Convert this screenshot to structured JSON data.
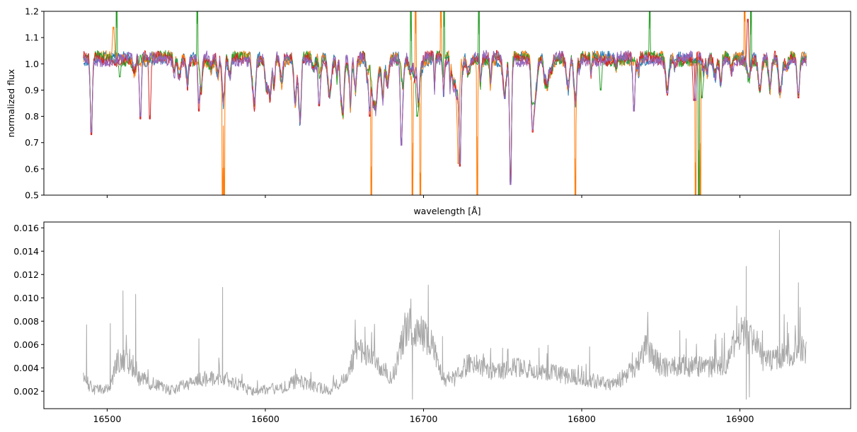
{
  "chart_data": [
    {
      "type": "line",
      "ylabel": "normalized flux",
      "xlabel": "wavelength [$\\AA$]",
      "xlabel_display": "wavelength [Å]",
      "xlim": [
        16460,
        16970
      ],
      "ylim": [
        0.5,
        1.2
      ],
      "x_ticks": [
        16500,
        16600,
        16700,
        16800,
        16900
      ],
      "x_tick_labels_shown": false,
      "y_ticks": [
        0.5,
        0.6,
        0.7,
        0.8,
        0.9,
        1.0,
        1.1,
        1.2
      ],
      "y_tick_labels": [
        "0.5",
        "0.6",
        "0.7",
        "0.8",
        "0.9",
        "1.0",
        "1.1",
        "1.2"
      ],
      "grid": false,
      "legend": "none",
      "x_range": [
        16485,
        16942
      ],
      "baseline": 1.02,
      "series": [
        {
          "color": "#1f77b4",
          "features": [
            [
              16490,
              0.74
            ],
            [
              16521,
              0.8
            ],
            [
              16558,
              0.86
            ],
            [
              16634,
              0.84
            ],
            [
              16666,
              0.83
            ],
            [
              16686,
              0.7
            ],
            [
              16723,
              0.62
            ],
            [
              16755,
              0.55
            ],
            [
              16769,
              0.75
            ],
            [
              16833,
              0.83
            ],
            [
              16937,
              0.89
            ]
          ]
        },
        {
          "color": "#ff7f0e",
          "features": [
            [
              16490,
              0.74
            ],
            [
              16504,
              1.14
            ],
            [
              16573,
              0.5
            ],
            [
              16574,
              0.5
            ],
            [
              16667,
              0.5
            ],
            [
              16693,
              0.5
            ],
            [
              16695,
              1.2
            ],
            [
              16698,
              0.5
            ],
            [
              16711,
              1.2
            ],
            [
              16722,
              0.62
            ],
            [
              16734,
              0.5
            ],
            [
              16755,
              0.55
            ],
            [
              16769,
              0.74
            ],
            [
              16796,
              0.5
            ],
            [
              16872,
              0.5
            ],
            [
              16875,
              0.5
            ],
            [
              16903,
              1.2
            ],
            [
              16937,
              0.88
            ]
          ]
        },
        {
          "color": "#2ca02c",
          "features": [
            [
              16490,
              0.74
            ],
            [
              16506,
              1.2
            ],
            [
              16508,
              0.95
            ],
            [
              16557,
              1.2
            ],
            [
              16692,
              1.2
            ],
            [
              16696,
              0.8
            ],
            [
              16713,
              1.2
            ],
            [
              16723,
              0.62
            ],
            [
              16735,
              1.2
            ],
            [
              16755,
              0.55
            ],
            [
              16812,
              0.9
            ],
            [
              16843,
              1.2
            ],
            [
              16874,
              0.5
            ],
            [
              16876,
              0.87
            ],
            [
              16907,
              1.2
            ],
            [
              16937,
              0.88
            ]
          ]
        },
        {
          "color": "#d62728",
          "features": [
            [
              16490,
              0.73
            ],
            [
              16521,
              0.79
            ],
            [
              16527,
              0.79
            ],
            [
              16558,
              0.82
            ],
            [
              16634,
              0.84
            ],
            [
              16666,
              0.8
            ],
            [
              16686,
              0.69
            ],
            [
              16723,
              0.61
            ],
            [
              16755,
              0.56
            ],
            [
              16769,
              0.74
            ],
            [
              16833,
              0.82
            ],
            [
              16871,
              0.86
            ],
            [
              16905,
              1.17
            ],
            [
              16937,
              0.87
            ]
          ]
        },
        {
          "color": "#9467bd",
          "features": [
            [
              16490,
              0.74
            ],
            [
              16521,
              0.8
            ],
            [
              16558,
              0.85
            ],
            [
              16634,
              0.85
            ],
            [
              16666,
              0.82
            ],
            [
              16686,
              0.69
            ],
            [
              16723,
              0.62
            ],
            [
              16755,
              0.54
            ],
            [
              16769,
              0.75
            ],
            [
              16833,
              0.82
            ],
            [
              16872,
              0.86
            ],
            [
              16937,
              0.89
            ]
          ]
        }
      ]
    },
    {
      "type": "line",
      "xlim": [
        16460,
        16970
      ],
      "ylim": [
        0.0005,
        0.0165
      ],
      "x_ticks": [
        16500,
        16600,
        16700,
        16800,
        16900
      ],
      "x_tick_labels": [
        "16500",
        "16600",
        "16700",
        "16800",
        "16900"
      ],
      "y_ticks": [
        0.002,
        0.004,
        0.006,
        0.008,
        0.01,
        0.012,
        0.014,
        0.016
      ],
      "y_tick_labels": [
        "0.002",
        "0.004",
        "0.006",
        "0.008",
        "0.010",
        "0.012",
        "0.014",
        "0.016"
      ],
      "grid": false,
      "legend": "none",
      "x_range": [
        16485,
        16942
      ],
      "series": [
        {
          "color": "#a9a9a9",
          "envelope": [
            [
              16485,
              0.003
            ],
            [
              16492,
              0.002
            ],
            [
              16502,
              0.0022
            ],
            [
              16506,
              0.0045
            ],
            [
              16512,
              0.0045
            ],
            [
              16520,
              0.003
            ],
            [
              16540,
              0.002
            ],
            [
              16560,
              0.003
            ],
            [
              16575,
              0.003
            ],
            [
              16590,
              0.002
            ],
            [
              16610,
              0.0022
            ],
            [
              16620,
              0.0028
            ],
            [
              16640,
              0.002
            ],
            [
              16650,
              0.003
            ],
            [
              16658,
              0.0055
            ],
            [
              16665,
              0.005
            ],
            [
              16680,
              0.003
            ],
            [
              16690,
              0.0075
            ],
            [
              16698,
              0.007
            ],
            [
              16705,
              0.006
            ],
            [
              16712,
              0.003
            ],
            [
              16720,
              0.003
            ],
            [
              16730,
              0.0045
            ],
            [
              16745,
              0.0035
            ],
            [
              16760,
              0.004
            ],
            [
              16780,
              0.0035
            ],
            [
              16800,
              0.003
            ],
            [
              16820,
              0.0025
            ],
            [
              16835,
              0.004
            ],
            [
              16840,
              0.0058
            ],
            [
              16850,
              0.004
            ],
            [
              16870,
              0.004
            ],
            [
              16890,
              0.004
            ],
            [
              16900,
              0.007
            ],
            [
              16910,
              0.006
            ],
            [
              16915,
              0.0045
            ],
            [
              16930,
              0.005
            ],
            [
              16942,
              0.0055
            ]
          ],
          "spikes": [
            [
              16487,
              0.0077
            ],
            [
              16502,
              0.0078
            ],
            [
              16510,
              0.0106
            ],
            [
              16518,
              0.0103
            ],
            [
              16573,
              0.0109
            ],
            [
              16558,
              0.0065
            ],
            [
              16663,
              0.0075
            ],
            [
              16692,
              0.0099
            ],
            [
              16703,
              0.0111
            ],
            [
              16712,
              0.0067
            ],
            [
              16750,
              0.0057
            ],
            [
              16773,
              0.0057
            ],
            [
              16805,
              0.0058
            ],
            [
              16832,
              0.0053
            ],
            [
              16862,
              0.0072
            ],
            [
              16866,
              0.0065
            ],
            [
              16884,
              0.0064
            ],
            [
              16898,
              0.0093
            ],
            [
              16904,
              0.0127
            ],
            [
              16925,
              0.0158
            ],
            [
              16937,
              0.0113
            ],
            [
              16930,
              0.0079
            ]
          ],
          "dips": [
            [
              16693,
              0.0013
            ],
            [
              16904,
              0.0013
            ],
            [
              16906,
              0.0015
            ]
          ]
        }
      ]
    }
  ]
}
